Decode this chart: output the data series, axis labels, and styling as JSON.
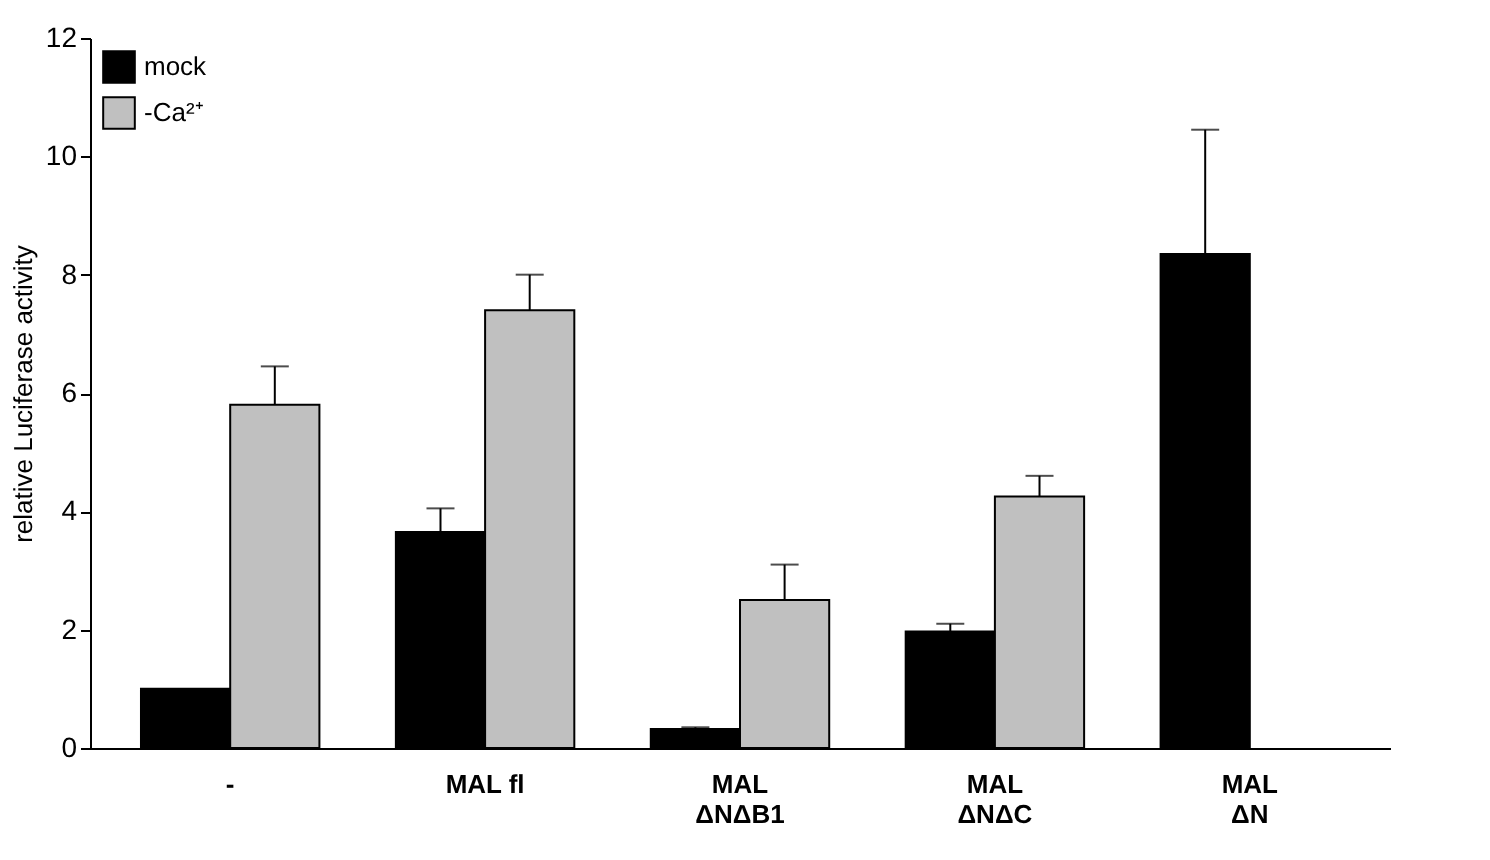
{
  "chart_data": {
    "type": "bar",
    "ylabel": "relative Luciferase activity",
    "categories": [
      "-",
      "MAL fl",
      "MAL\nΔNΔB1",
      "MAL\nΔNΔC",
      "MAL\nΔN"
    ],
    "series": [
      {
        "name": "mock",
        "color": "#000000",
        "values": [
          1.0,
          3.65,
          0.32,
          1.97,
          8.35
        ],
        "errors": [
          null,
          0.4,
          0.03,
          0.13,
          2.1
        ]
      },
      {
        "name": "-Ca²⁺",
        "color": "#c0c0c0",
        "values": [
          5.8,
          7.4,
          2.5,
          4.25,
          null
        ],
        "errors": [
          0.65,
          0.6,
          0.6,
          0.35,
          null
        ]
      }
    ],
    "ylim": [
      0,
      12
    ],
    "yticks": [
      0,
      2,
      4,
      6,
      8,
      10,
      12
    ],
    "grid": false,
    "legend": "top left"
  }
}
